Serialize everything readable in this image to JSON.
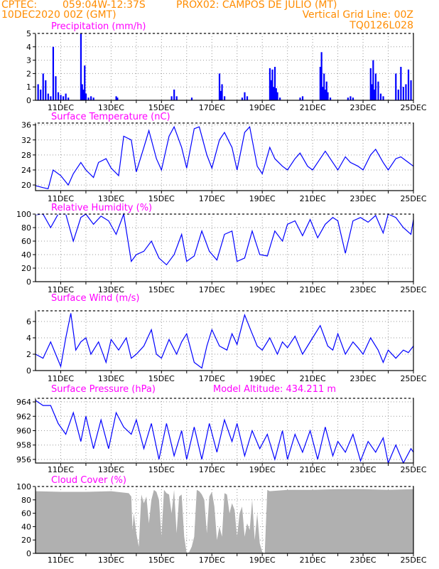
{
  "header": {
    "left1": "CPTEC:",
    "coords": "059:04W-12:37S",
    "station": "PROX02: CAMPOS DE JULIO (MT)",
    "date": "10DEC2020 00Z (GMT)",
    "grid_note": "Vertical Grid Line: 00Z",
    "model": "TQ0126L028"
  },
  "colors": {
    "header": "#ff8c00",
    "title": "#ff00ff",
    "series": "#0000ff",
    "fill": "#b0b0b0",
    "grid": "#999999"
  },
  "x_ticks": [
    "11DEC",
    "13DEC",
    "15DEC",
    "17DEC",
    "19DEC",
    "21DEC",
    "23DEC",
    "25DEC"
  ],
  "chart_data": [
    {
      "type": "bar",
      "title": "Precipitation (mm/h)",
      "x_unit": "days since 10DEC2020 00Z",
      "ylim": [
        0,
        5
      ],
      "yticks": [
        0,
        1,
        2,
        3,
        4,
        5
      ],
      "grid": true,
      "x": [
        0.1,
        0.2,
        0.3,
        0.4,
        0.5,
        0.6,
        0.7,
        0.8,
        0.9,
        1.0,
        1.1,
        1.2,
        1.3,
        1.8,
        1.85,
        1.9,
        1.95,
        2.0,
        2.1,
        2.2,
        2.3,
        3.2,
        3.25,
        5.4,
        5.5,
        5.6,
        6.2,
        7.3,
        7.35,
        7.4,
        7.5,
        8.2,
        8.3,
        8.4,
        9.3,
        9.35,
        9.4,
        9.45,
        9.5,
        9.55,
        9.6,
        9.7,
        10.5,
        10.6,
        11.3,
        11.35,
        11.4,
        11.45,
        11.5,
        11.55,
        11.6,
        11.7,
        12.4,
        12.5,
        12.6,
        13.3,
        13.35,
        13.4,
        13.45,
        13.5,
        13.6,
        13.7,
        13.8,
        14.3,
        14.4,
        14.5,
        14.6,
        14.7,
        14.8,
        14.9
      ],
      "values": [
        1.2,
        0.8,
        2.0,
        1.5,
        0.5,
        0.3,
        4.0,
        1.8,
        0.6,
        0.4,
        0.3,
        0.5,
        0.2,
        5.0,
        1.2,
        0.8,
        2.6,
        0.5,
        0.2,
        0.3,
        0.2,
        0.3,
        0.2,
        0.3,
        0.8,
        0.3,
        0.2,
        2.0,
        0.7,
        1.2,
        0.3,
        0.2,
        0.6,
        0.3,
        2.4,
        1.5,
        2.3,
        1.0,
        2.5,
        0.9,
        0.6,
        0.2,
        0.2,
        0.3,
        2.5,
        3.6,
        1.0,
        2.0,
        0.8,
        1.4,
        0.6,
        0.2,
        0.2,
        0.3,
        0.2,
        2.4,
        1.2,
        3.0,
        0.8,
        2.0,
        1.4,
        0.5,
        0.3,
        2.0,
        0.8,
        2.5,
        1.0,
        1.2,
        2.3,
        1.5
      ]
    },
    {
      "type": "line",
      "title": "Surface Temperature (nC)",
      "x_unit": "days since 10DEC2020 00Z",
      "ylim": [
        18.5,
        36.5
      ],
      "yticks": [
        20,
        24,
        28,
        32,
        36
      ],
      "grid": true,
      "x": [
        0,
        0.3,
        0.5,
        0.7,
        1.0,
        1.3,
        1.5,
        1.8,
        2.0,
        2.3,
        2.5,
        2.8,
        3.0,
        3.3,
        3.5,
        3.8,
        4.0,
        4.3,
        4.5,
        4.8,
        5.0,
        5.3,
        5.5,
        5.8,
        6.0,
        6.3,
        6.5,
        6.8,
        7.0,
        7.3,
        7.5,
        7.8,
        8.0,
        8.3,
        8.5,
        8.8,
        9.0,
        9.3,
        9.5,
        9.8,
        10.0,
        10.3,
        10.5,
        10.8,
        11.0,
        11.3,
        11.5,
        11.8,
        12.0,
        12.3,
        12.5,
        12.8,
        13.0,
        13.3,
        13.5,
        13.8,
        14.0,
        14.3,
        14.5,
        14.8,
        15.0
      ],
      "values": [
        19.8,
        19.3,
        19.0,
        24.0,
        22.5,
        20.0,
        23.0,
        26.0,
        24.0,
        22.0,
        26.0,
        27.0,
        24.5,
        22.5,
        33.0,
        32.0,
        23.5,
        30.0,
        34.5,
        27.0,
        24.0,
        33.0,
        35.5,
        30.0,
        24.5,
        35.0,
        35.5,
        28.0,
        24.5,
        32.0,
        34.0,
        30.0,
        24.0,
        34.0,
        35.5,
        25.0,
        23.0,
        30.0,
        27.0,
        25.0,
        24.0,
        27.0,
        28.5,
        25.0,
        24.0,
        27.0,
        29.0,
        26.0,
        24.0,
        27.5,
        26.0,
        25.0,
        24.0,
        28.0,
        29.5,
        26.0,
        24.0,
        27.0,
        27.5,
        26.0,
        25.0
      ]
    },
    {
      "type": "line",
      "title": "Relative Humidity (%)",
      "x_unit": "days since 10DEC2020 00Z",
      "ylim": [
        0,
        100
      ],
      "yticks": [
        0,
        20,
        40,
        60,
        80,
        100
      ],
      "grid": true,
      "x": [
        0,
        0.3,
        0.6,
        0.9,
        1.2,
        1.5,
        1.8,
        2.0,
        2.3,
        2.6,
        2.9,
        3.2,
        3.5,
        3.8,
        4.0,
        4.3,
        4.6,
        4.9,
        5.2,
        5.5,
        5.8,
        6.0,
        6.3,
        6.6,
        6.9,
        7.2,
        7.5,
        7.8,
        8.0,
        8.3,
        8.6,
        8.9,
        9.2,
        9.5,
        9.8,
        10.0,
        10.3,
        10.6,
        10.9,
        11.2,
        11.5,
        11.8,
        12.0,
        12.3,
        12.6,
        12.9,
        13.2,
        13.5,
        13.8,
        14.0,
        14.3,
        14.6,
        14.9,
        15.0
      ],
      "values": [
        99,
        100,
        80,
        100,
        100,
        60,
        95,
        100,
        85,
        97,
        90,
        70,
        100,
        30,
        40,
        45,
        60,
        35,
        25,
        40,
        70,
        30,
        38,
        75,
        45,
        32,
        70,
        75,
        30,
        35,
        75,
        40,
        38,
        75,
        60,
        85,
        90,
        68,
        92,
        65,
        85,
        95,
        90,
        42,
        90,
        95,
        88,
        98,
        72,
        100,
        95,
        80,
        70,
        92
      ]
    },
    {
      "type": "line",
      "title": "Surface Wind (m/s)",
      "x_unit": "days since 10DEC2020 00Z",
      "ylim": [
        0,
        7.3
      ],
      "yticks": [
        0,
        2,
        4,
        6
      ],
      "grid": true,
      "x": [
        0,
        0.3,
        0.6,
        0.8,
        1.0,
        1.2,
        1.4,
        1.6,
        1.8,
        2.0,
        2.2,
        2.5,
        2.8,
        3.0,
        3.3,
        3.6,
        3.8,
        4.0,
        4.3,
        4.6,
        4.8,
        5.0,
        5.3,
        5.6,
        5.8,
        6.0,
        6.3,
        6.6,
        6.8,
        7.0,
        7.3,
        7.6,
        7.8,
        8.0,
        8.3,
        8.6,
        8.8,
        9.0,
        9.3,
        9.6,
        9.8,
        10.0,
        10.3,
        10.6,
        10.8,
        11.0,
        11.3,
        11.6,
        11.8,
        12.0,
        12.3,
        12.6,
        12.8,
        13.0,
        13.3,
        13.6,
        13.8,
        14.0,
        14.3,
        14.6,
        14.8,
        15.0
      ],
      "values": [
        2.0,
        1.5,
        3.5,
        2.0,
        0.5,
        4.0,
        7.0,
        2.5,
        3.5,
        4.0,
        2.0,
        3.5,
        1.0,
        3.8,
        2.5,
        4.0,
        1.5,
        2.0,
        3.0,
        5.0,
        2.0,
        1.5,
        3.8,
        2.0,
        3.5,
        4.5,
        1.0,
        0.3,
        3.0,
        5.0,
        3.0,
        2.5,
        4.5,
        3.2,
        6.8,
        4.5,
        3.0,
        2.5,
        4.0,
        2.0,
        3.5,
        2.8,
        4.2,
        2.0,
        3.0,
        4.0,
        5.5,
        3.0,
        2.5,
        4.5,
        2.0,
        3.5,
        2.8,
        2.0,
        4.0,
        2.5,
        1.0,
        2.5,
        1.5,
        2.5,
        2.2,
        3.0
      ]
    },
    {
      "type": "line",
      "title": "Surface Pressure (hPa)",
      "subtitle": "Model Altitude: 434.211 m",
      "x_unit": "days since 10DEC2020 00Z",
      "ylim": [
        955.5,
        964.5
      ],
      "yticks": [
        956,
        958,
        960,
        962,
        964
      ],
      "grid": true,
      "x": [
        0,
        0.3,
        0.6,
        0.9,
        1.2,
        1.5,
        1.8,
        2.0,
        2.3,
        2.6,
        2.9,
        3.2,
        3.5,
        3.8,
        4.0,
        4.3,
        4.6,
        4.9,
        5.2,
        5.5,
        5.8,
        6.0,
        6.3,
        6.6,
        6.9,
        7.2,
        7.5,
        7.8,
        8.0,
        8.3,
        8.6,
        8.9,
        9.2,
        9.5,
        9.8,
        10.0,
        10.3,
        10.6,
        10.9,
        11.2,
        11.5,
        11.8,
        12.0,
        12.3,
        12.6,
        12.9,
        13.2,
        13.5,
        13.8,
        14.0,
        14.3,
        14.6,
        14.9,
        15.0
      ],
      "values": [
        964.2,
        963.5,
        963.5,
        961.0,
        959.5,
        962.5,
        958.5,
        962.0,
        957.5,
        961.5,
        957.5,
        962.5,
        960.5,
        959.5,
        961.5,
        957.5,
        961.0,
        956.0,
        961.0,
        956.5,
        960.0,
        956.0,
        960.5,
        956.0,
        961.0,
        957.0,
        961.5,
        958.5,
        961.0,
        956.5,
        960.0,
        957.5,
        959.5,
        956.0,
        960.0,
        956.0,
        959.5,
        957.0,
        960.0,
        956.0,
        960.5,
        956.5,
        958.5,
        957.0,
        959.5,
        955.8,
        958.5,
        957.0,
        959.0,
        955.5,
        958.0,
        955.5,
        957.5,
        957.0
      ]
    },
    {
      "type": "area",
      "title": "Cloud Cover (%)",
      "x_unit": "days since 10DEC2020 00Z",
      "ylim": [
        0,
        100
      ],
      "yticks": [
        0,
        20,
        40,
        60,
        80,
        100
      ],
      "grid": true,
      "x": [
        0,
        1.0,
        2.0,
        3.0,
        3.7,
        3.8,
        3.85,
        3.9,
        4.0,
        4.05,
        4.1,
        4.2,
        4.3,
        4.4,
        4.5,
        4.6,
        4.7,
        4.8,
        4.9,
        5.0,
        5.1,
        5.2,
        5.3,
        5.4,
        5.5,
        5.6,
        5.7,
        5.8,
        5.9,
        6.0,
        6.1,
        6.2,
        6.3,
        6.4,
        6.5,
        6.6,
        6.7,
        6.8,
        6.9,
        7.0,
        7.1,
        7.2,
        7.3,
        7.4,
        7.5,
        7.6,
        7.7,
        7.8,
        7.9,
        8.0,
        8.1,
        8.2,
        8.3,
        8.4,
        8.5,
        8.6,
        8.7,
        8.8,
        8.9,
        9.0,
        9.1,
        9.2,
        9.3,
        10.0,
        11.0,
        12.0,
        13.0,
        14.0,
        15.0
      ],
      "values": [
        93,
        92,
        92,
        93,
        90,
        85,
        35,
        60,
        30,
        20,
        10,
        88,
        75,
        85,
        45,
        80,
        95,
        92,
        80,
        25,
        95,
        90,
        88,
        60,
        95,
        30,
        85,
        88,
        25,
        0,
        2,
        10,
        25,
        95,
        93,
        88,
        80,
        30,
        85,
        92,
        70,
        20,
        40,
        25,
        90,
        88,
        60,
        75,
        65,
        25,
        60,
        70,
        25,
        45,
        35,
        80,
        20,
        60,
        15,
        2,
        0,
        95,
        93,
        95,
        95,
        96,
        96,
        95,
        96
      ]
    }
  ]
}
